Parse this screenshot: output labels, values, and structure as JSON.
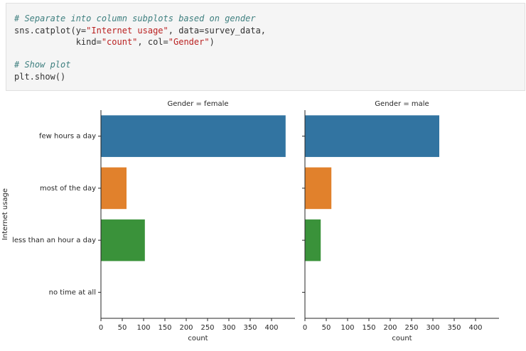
{
  "code": {
    "blocks": [
      [
        "# Separate into column subplots based on gender",
        "sns.catplot(y=\"Internet usage\", data=survey_data,",
        "            kind=\"count\", col=\"Gender\")"
      ],
      [
        "# Show plot",
        "plt.show()"
      ]
    ]
  },
  "chart_data": [
    {
      "type": "barh",
      "title": "Gender = female",
      "xlabel": "count",
      "ylabel": "Internet usage",
      "categories": [
        "few hours a day",
        "most of the day",
        "less than an hour a day",
        "no time at all"
      ],
      "values": [
        433,
        60,
        103,
        0
      ],
      "colors": [
        "#3274a1",
        "#e1812c",
        "#3a923a",
        "#c03d3e"
      ],
      "xlim": [
        0,
        455
      ],
      "xticks": [
        0,
        50,
        100,
        150,
        200,
        250,
        300,
        350,
        400
      ]
    },
    {
      "type": "barh",
      "title": "Gender = male",
      "xlabel": "count",
      "categories": [
        null,
        null,
        null,
        null
      ],
      "values": [
        315,
        62,
        37,
        0
      ],
      "colors": [
        "#3274a1",
        "#e1812c",
        "#3a923a",
        "#c03d3e"
      ],
      "xlim": [
        0,
        455
      ],
      "xticks": [
        0,
        50,
        100,
        150,
        200,
        250,
        300,
        350,
        400
      ]
    }
  ]
}
